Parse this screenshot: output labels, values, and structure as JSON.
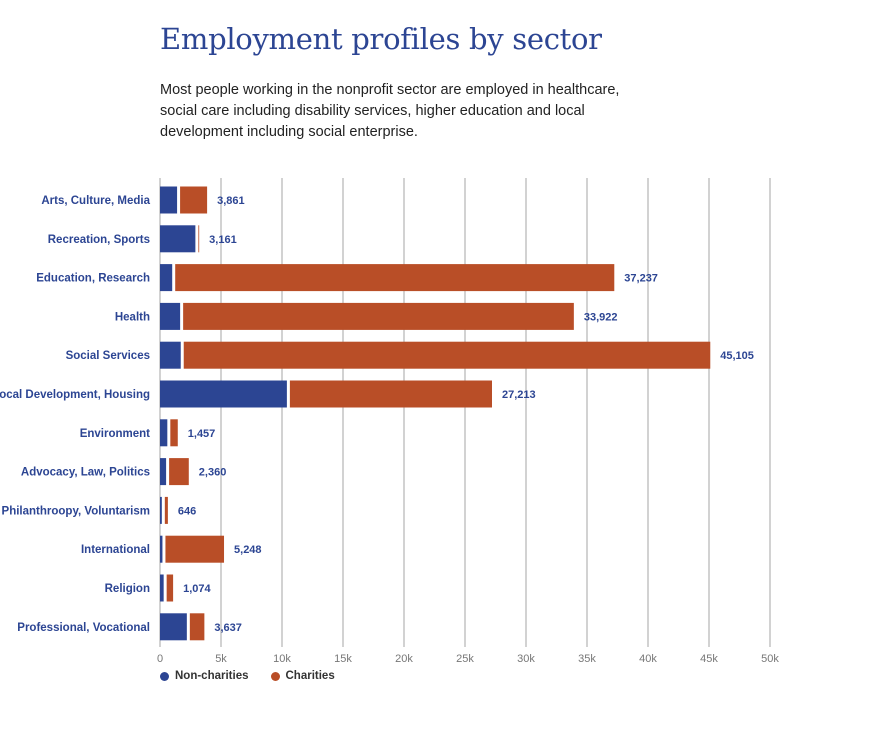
{
  "title": "Employment profiles by sector",
  "subtitle": "Most people working in the nonprofit sector are employed in healthcare, social care including disability services, higher education and local development including social enterprise.",
  "colors": {
    "non_charities": "#2c4593",
    "charities": "#b94e27",
    "grid": "#a6a6a6"
  },
  "chart_data": {
    "type": "bar",
    "orientation": "horizontal",
    "stacked": true,
    "categories": [
      "Arts, Culture, Media",
      "Recreation, Sports",
      "Education, Research",
      "Health",
      "Social Services",
      "Local Development, Housing",
      "Environment",
      "Advocacy, Law, Politics",
      "Philanthroopy, Voluntarism",
      "International",
      "Religion",
      "Professional, Vocational"
    ],
    "series": [
      {
        "name": "Non-charities",
        "values": [
          1400,
          2900,
          1000,
          1650,
          1700,
          10400,
          600,
          500,
          150,
          200,
          300,
          2200
        ]
      },
      {
        "name": "Charities",
        "values": [
          2461,
          261,
          36237,
          32272,
          43405,
          16813,
          857,
          1860,
          496,
          5048,
          774,
          1437
        ]
      }
    ],
    "totals": [
      3861,
      3161,
      37237,
      33922,
      45105,
      27213,
      1457,
      2360,
      646,
      5248,
      1074,
      3637
    ],
    "total_labels": [
      "3,861",
      "3,161",
      "37,237",
      "33,922",
      "45,105",
      "27,213",
      "1,457",
      "2,360",
      "646",
      "5,248",
      "1,074",
      "3,637"
    ],
    "xlim": [
      0,
      50000
    ],
    "xticks": [
      0,
      5000,
      10000,
      15000,
      20000,
      25000,
      30000,
      35000,
      40000,
      45000,
      50000
    ],
    "xtick_labels": [
      "0",
      "5k",
      "10k",
      "15k",
      "20k",
      "25k",
      "30k",
      "35k",
      "40k",
      "45k",
      "50k"
    ],
    "grid": true,
    "legend_position": "bottom-left"
  },
  "legend": [
    {
      "label": "Non-charities"
    },
    {
      "label": "Charities"
    }
  ]
}
